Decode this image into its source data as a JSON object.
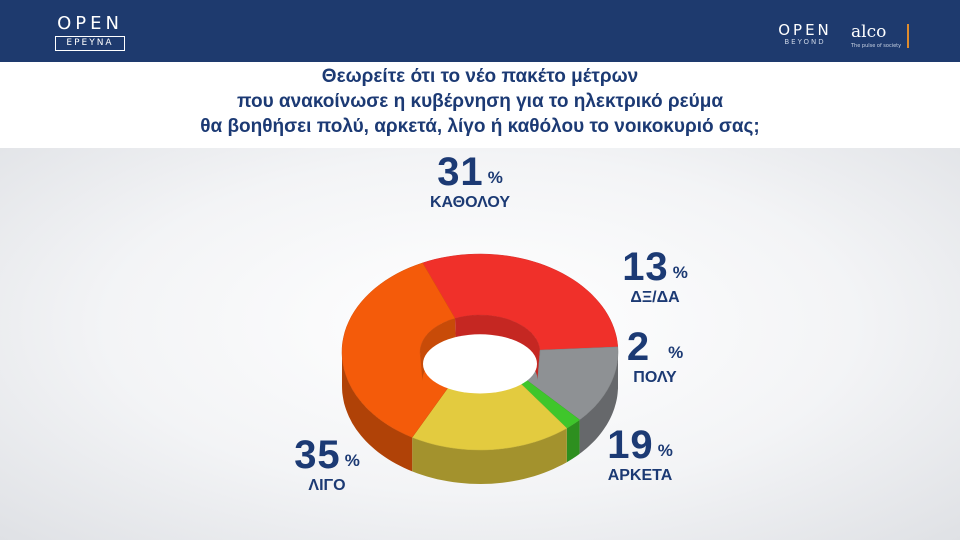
{
  "header": {
    "left_logo": {
      "wordmark": "OPEN",
      "sub": "ΕΡΕΥΝΑ"
    },
    "right_logo": {
      "wordmark": "OPEN",
      "sub": "BEYOND"
    },
    "partner_logo": {
      "wordmark": "alco",
      "sub": "The pulse of society"
    },
    "bar_color": "#1e3a6e"
  },
  "title_lines": [
    "Θεωρείτε ότι το νέο πακέτο μέτρων",
    "που ανακοίνωσε η κυβέρνηση για το ηλεκτρικό ρεύμα",
    "θα βοηθήσει πολύ, αρκετά, λίγο ή καθόλου το νοικοκυριό σας;"
  ],
  "chart_data": {
    "type": "pie",
    "style": "3d-donut",
    "categories": [
      "ΚΑΘΟΛΟΥ",
      "Δ Ξ/ΔΑ",
      "ΠΟΛΥ",
      "ΑΡΚΕΤΑ",
      "ΛΙΓΟ"
    ],
    "values": [
      31,
      13,
      2,
      19,
      35
    ],
    "unit": "%",
    "colors": [
      "#f0302a",
      "#8e9194",
      "#3fc62b",
      "#e3cb3f",
      "#f45b0a"
    ]
  },
  "labels": [
    {
      "value": "31",
      "unit": "%",
      "category": "ΚΑΘΟΛΟΥ"
    },
    {
      "value": "13",
      "unit": "%",
      "category": "ΔΞ/ΔΑ"
    },
    {
      "value": "2",
      "unit": "%",
      "category": "ΠΟΛΥ"
    },
    {
      "value": "19",
      "unit": "%",
      "category": "ΑΡΚΕΤΑ"
    },
    {
      "value": "35",
      "unit": "%",
      "category": "ΛΙΓΟ"
    }
  ]
}
